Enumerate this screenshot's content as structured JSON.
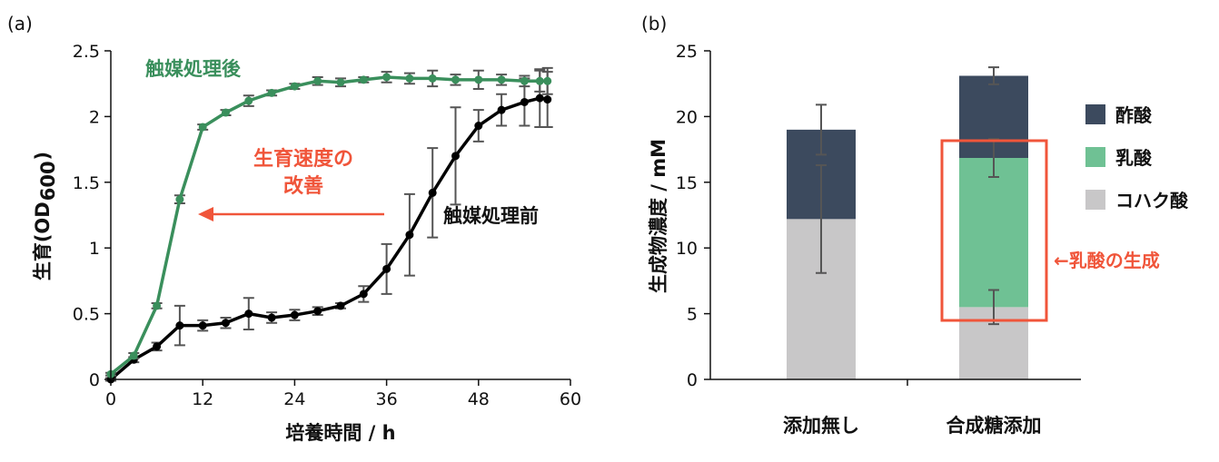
{
  "chart_data": [
    {
      "type": "line",
      "panel_label": "(a)",
      "xlabel": "培養時間 / h",
      "ylabel_parts": [
        "生育(OD",
        "600",
        ")"
      ],
      "xlim": [
        0,
        60
      ],
      "ylim": [
        0,
        2.5
      ],
      "xticks": [
        0,
        12,
        24,
        36,
        48,
        60
      ],
      "yticks": [
        0,
        0.5,
        1,
        1.5,
        2,
        2.5
      ],
      "ytick_labels": [
        "0",
        "0.5",
        "1",
        "1.5",
        "2",
        "2.5"
      ],
      "grid": false,
      "x": [
        0,
        3,
        6,
        9,
        12,
        15,
        18,
        21,
        24,
        27,
        30,
        33,
        36,
        39,
        42,
        45,
        48,
        51,
        54,
        56,
        57
      ],
      "series": [
        {
          "name": "触媒処理後",
          "color": "#3a8f5c",
          "values": [
            0.04,
            0.18,
            0.56,
            1.37,
            1.92,
            2.03,
            2.12,
            2.18,
            2.23,
            2.27,
            2.26,
            2.28,
            2.3,
            2.29,
            2.29,
            2.28,
            2.28,
            2.28,
            2.27,
            2.27,
            2.27
          ],
          "errors": [
            0.01,
            0.02,
            0.02,
            0.03,
            0.02,
            0.02,
            0.04,
            0.02,
            0.02,
            0.03,
            0.03,
            0.02,
            0.04,
            0.04,
            0.06,
            0.04,
            0.07,
            0.04,
            0.04,
            0.08,
            0.1
          ]
        },
        {
          "name": "触媒処理前",
          "color": "#000000",
          "values": [
            0.0,
            0.15,
            0.25,
            0.41,
            0.41,
            0.43,
            0.5,
            0.47,
            0.49,
            0.52,
            0.56,
            0.65,
            0.84,
            1.1,
            1.42,
            1.7,
            1.93,
            2.05,
            2.11,
            2.14,
            2.13
          ],
          "errors": [
            0.01,
            0.02,
            0.03,
            0.15,
            0.04,
            0.04,
            0.12,
            0.04,
            0.04,
            0.03,
            0.02,
            0.06,
            0.19,
            0.31,
            0.34,
            0.37,
            0.12,
            0.12,
            0.18,
            0.22,
            0.21
          ]
        }
      ],
      "annotations": {
        "improvement_line1": "生育速度の",
        "improvement_line2": "改善",
        "improvement_color": "#f0553a"
      }
    },
    {
      "type": "bar",
      "stacked": true,
      "panel_label": "(b)",
      "ylabel": "生成物濃度 / mM",
      "xlabel": "",
      "ylim": [
        0,
        25
      ],
      "yticks": [
        0,
        5,
        10,
        15,
        20,
        25
      ],
      "categories": [
        "添加無し",
        "合成糖添加"
      ],
      "series": [
        {
          "name": "コハク酸",
          "color": "#c8c7c8",
          "values": [
            12.2,
            5.5
          ],
          "errors": [
            4.1,
            1.3
          ]
        },
        {
          "name": "乳酸",
          "color": "#6fc194",
          "values": [
            0,
            11.35
          ],
          "errors": [
            0,
            1.45
          ]
        },
        {
          "name": "酢酸",
          "color": "#3c4a5e",
          "values": [
            6.8,
            6.25
          ],
          "errors": [
            1.9,
            0.65
          ]
        }
      ],
      "legend_order": [
        "酢酸",
        "乳酸",
        "コハク酸"
      ],
      "legend_placement": "right",
      "annotation": "←乳酸の生成",
      "annotation_color": "#f0553a"
    }
  ]
}
